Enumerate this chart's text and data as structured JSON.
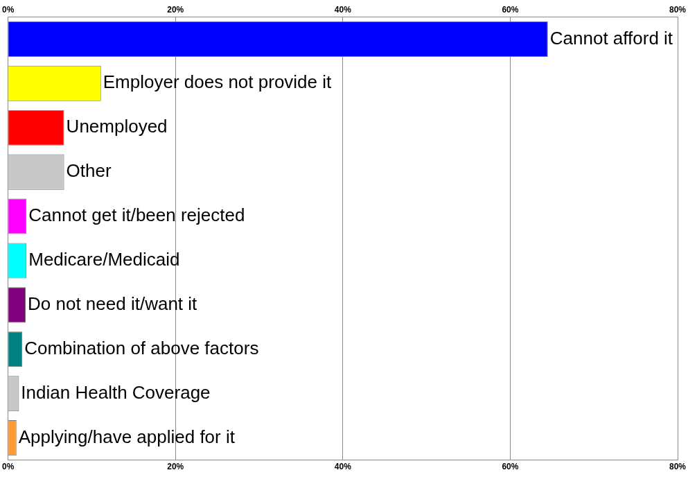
{
  "chart_data": {
    "type": "bar",
    "orientation": "horizontal",
    "categories": [
      "Cannot afford it",
      "Employer does not provide it",
      "Unemployed",
      "Other",
      "Cannot get it/been rejected",
      "Medicare/Medicaid",
      "Do not need it/want it",
      "Combination of above factors",
      "Indian Health Coverage",
      "Applying/have applied for it"
    ],
    "values": [
      64.5,
      11.1,
      6.7,
      6.7,
      2.2,
      2.2,
      2.1,
      1.7,
      1.3,
      1.0
    ],
    "colors": [
      "#0000ff",
      "#ffff00",
      "#ff0000",
      "#c8c8c8",
      "#ff00ff",
      "#00ffff",
      "#800080",
      "#008080",
      "#c8c8c8",
      "#ff9933"
    ],
    "xlim": [
      0,
      80
    ],
    "xticks": [
      {
        "value": 0,
        "label": "0%"
      },
      {
        "value": 20,
        "label": "20%"
      },
      {
        "value": 40,
        "label": "40%"
      },
      {
        "value": 60,
        "label": "60%"
      },
      {
        "value": 80,
        "label": "80%"
      }
    ],
    "x2lim": [
      0,
      80
    ],
    "x2ticks": [
      {
        "value": 0,
        "label": "0%"
      },
      {
        "value": 20,
        "label": "20%"
      },
      {
        "value": 40,
        "label": "40%"
      },
      {
        "value": 60,
        "label": "60%"
      },
      {
        "value": 80,
        "label": "80%"
      }
    ],
    "grid": "x",
    "legend": false
  }
}
